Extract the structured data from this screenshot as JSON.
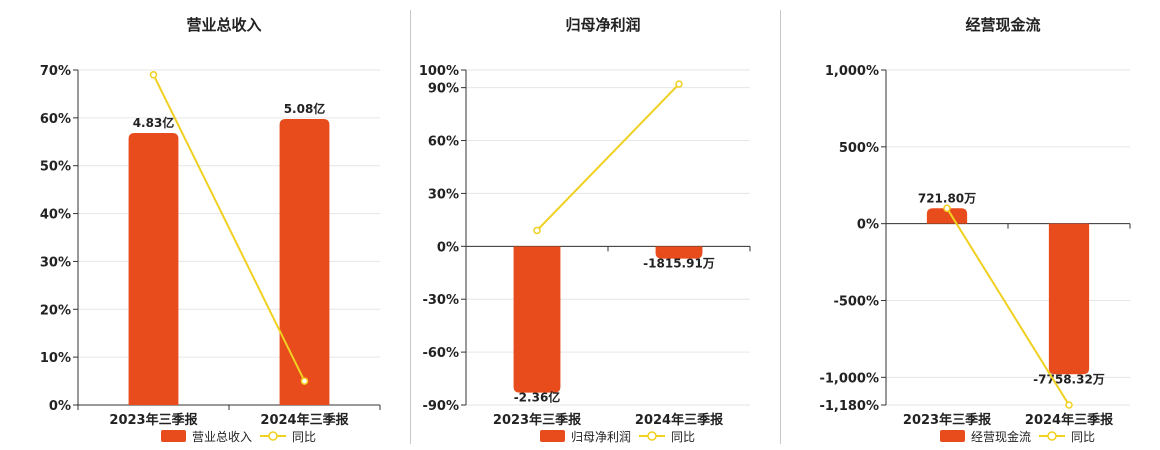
{
  "colors": {
    "bar": "#e84c1c",
    "line": "#f0d020",
    "grid": "#e6e6e6",
    "axis": "#333333",
    "text": "#222222"
  },
  "chart_data": [
    {
      "type": "bar",
      "title": "营业总收入",
      "categories": [
        "2023年三季报",
        "2024年三季报"
      ],
      "series": [
        {
          "name": "营业总收入",
          "kind": "bar",
          "axis": "right-hidden",
          "values": [
            4.83,
            5.08
          ],
          "labels": [
            "4.83亿",
            "5.08亿"
          ]
        },
        {
          "name": "同比",
          "kind": "line",
          "axis": "left",
          "values": [
            69,
            5
          ]
        }
      ],
      "yaxis": {
        "ticks": [
          0,
          10,
          20,
          30,
          40,
          50,
          60,
          70
        ],
        "tick_labels": [
          "0%",
          "10%",
          "20%",
          "30%",
          "40%",
          "50%",
          "60%",
          "70%"
        ],
        "ylim": [
          0,
          70
        ]
      },
      "bar_axis_max": 5.95,
      "legend": [
        "营业总收入",
        "同比"
      ],
      "legend_position": "bottom"
    },
    {
      "type": "bar",
      "title": "归母净利润",
      "categories": [
        "2023年三季报",
        "2024年三季报"
      ],
      "series": [
        {
          "name": "归母净利润",
          "kind": "bar",
          "axis": "left",
          "values": [
            -83,
            -7
          ],
          "labels": [
            "-2.36亿",
            "-1815.91万"
          ]
        },
        {
          "name": "同比",
          "kind": "line",
          "axis": "left",
          "values": [
            9,
            92
          ]
        }
      ],
      "yaxis": {
        "ticks": [
          -90,
          -60,
          -30,
          0,
          30,
          60,
          90,
          100
        ],
        "tick_labels": [
          "-90%",
          "-60%",
          "-30%",
          "0%",
          "30%",
          "60%",
          "90%",
          "100%"
        ],
        "ylim": [
          -90,
          100
        ]
      },
      "legend": [
        "归母净利润",
        "同比"
      ],
      "legend_position": "bottom"
    },
    {
      "type": "bar",
      "title": "经营现金流",
      "categories": [
        "2023年三季报",
        "2024年三季报"
      ],
      "series": [
        {
          "name": "经营现金流",
          "kind": "bar",
          "axis": "left",
          "values": [
            100,
            -980
          ],
          "labels": [
            "721.80万",
            "-7758.32万"
          ]
        },
        {
          "name": "同比",
          "kind": "line",
          "axis": "left",
          "values": [
            100,
            -1180
          ]
        }
      ],
      "yaxis": {
        "ticks": [
          -1180,
          -1000,
          -500,
          0,
          500,
          1000
        ],
        "tick_labels": [
          "-1,180%",
          "-1,000%",
          "-500%",
          "0%",
          "500%",
          "1,000%"
        ],
        "ylim": [
          -1180,
          1000
        ]
      },
      "legend": [
        "经营现金流",
        "同比"
      ],
      "legend_position": "bottom"
    }
  ]
}
